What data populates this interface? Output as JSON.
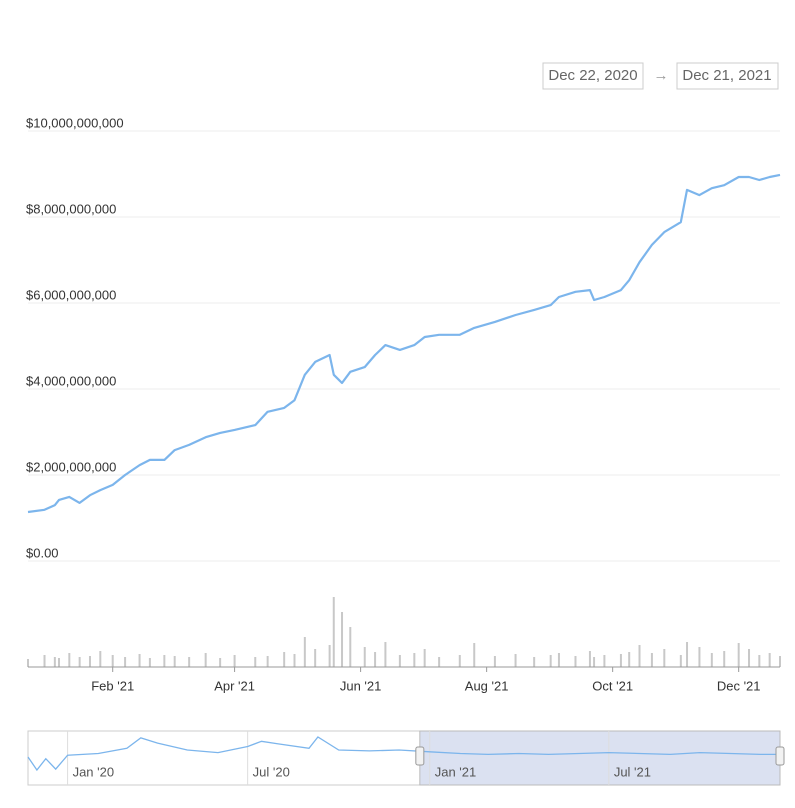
{
  "chart_data": {
    "type": "line",
    "range_start": "Dec 22, 2020",
    "range_end": "Dec 21, 2021",
    "xlim": [
      "2020-12-22",
      "2021-12-21"
    ],
    "x": [
      "2020-12-22",
      "2020-12-30",
      "2021-01-04",
      "2021-01-06",
      "2021-01-11",
      "2021-01-16",
      "2021-01-21",
      "2021-01-26",
      "2021-02-01",
      "2021-02-07",
      "2021-02-14",
      "2021-02-19",
      "2021-02-26",
      "2021-03-03",
      "2021-03-10",
      "2021-03-18",
      "2021-03-25",
      "2021-04-01",
      "2021-04-11",
      "2021-04-17",
      "2021-04-25",
      "2021-04-30",
      "2021-05-05",
      "2021-05-10",
      "2021-05-17",
      "2021-05-19",
      "2021-05-23",
      "2021-05-27",
      "2021-06-03",
      "2021-06-08",
      "2021-06-13",
      "2021-06-20",
      "2021-06-27",
      "2021-07-02",
      "2021-07-09",
      "2021-07-19",
      "2021-07-26",
      "2021-08-05",
      "2021-08-15",
      "2021-08-24",
      "2021-09-01",
      "2021-09-05",
      "2021-09-13",
      "2021-09-20",
      "2021-09-22",
      "2021-09-27",
      "2021-10-05",
      "2021-10-09",
      "2021-10-14",
      "2021-10-20",
      "2021-10-26",
      "2021-11-03",
      "2021-11-06",
      "2021-11-12",
      "2021-11-18",
      "2021-11-24",
      "2021-12-01",
      "2021-12-06",
      "2021-12-11",
      "2021-12-16",
      "2021-12-21"
    ],
    "series": [
      {
        "color": "#7cb5ec",
        "values": [
          1140000000,
          1190000000,
          1300000000,
          1420000000,
          1490000000,
          1350000000,
          1530000000,
          1650000000,
          1770000000,
          2000000000,
          2230000000,
          2350000000,
          2350000000,
          2580000000,
          2700000000,
          2880000000,
          2980000000,
          3050000000,
          3160000000,
          3470000000,
          3560000000,
          3740000000,
          4330000000,
          4630000000,
          4790000000,
          4330000000,
          4140000000,
          4400000000,
          4510000000,
          4790000000,
          5020000000,
          4910000000,
          5020000000,
          5210000000,
          5260000000,
          5260000000,
          5420000000,
          5560000000,
          5720000000,
          5840000000,
          5950000000,
          6140000000,
          6260000000,
          6300000000,
          6070000000,
          6140000000,
          6300000000,
          6530000000,
          6950000000,
          7350000000,
          7650000000,
          7880000000,
          8630000000,
          8510000000,
          8670000000,
          8740000000,
          8930000000,
          8930000000,
          8860000000,
          8930000000,
          8980000000
        ]
      }
    ],
    "volume": [
      8,
      12,
      10,
      9,
      14,
      10,
      11,
      16,
      12,
      10,
      13,
      9,
      12,
      11,
      10,
      14,
      9,
      12,
      10,
      11,
      15,
      13,
      30,
      18,
      22,
      70,
      55,
      40,
      20,
      15,
      25,
      12,
      14,
      18,
      10,
      12,
      24,
      11,
      13,
      10,
      12,
      14,
      11,
      16,
      10,
      12,
      13,
      15,
      22,
      14,
      18,
      12,
      25,
      20,
      14,
      16,
      24,
      18,
      12,
      14,
      11
    ],
    "volume_color": "#c8c8c8",
    "ylim": [
      0,
      10000000000
    ],
    "yticks": [
      {
        "value": 0,
        "label": "$0.00"
      },
      {
        "value": 2000000000,
        "label": "$2,000,000,000"
      },
      {
        "value": 4000000000,
        "label": "$4,000,000,000"
      },
      {
        "value": 6000000000,
        "label": "$6,000,000,000"
      },
      {
        "value": 8000000000,
        "label": "$8,000,000,000"
      },
      {
        "value": 10000000000,
        "label": "$10,000,000,000"
      }
    ],
    "xticks": [
      {
        "value": "2021-02-01",
        "label": "Feb '21"
      },
      {
        "value": "2021-04-01",
        "label": "Apr '21"
      },
      {
        "value": "2021-06-01",
        "label": "Jun '21"
      },
      {
        "value": "2021-08-01",
        "label": "Aug '21"
      },
      {
        "value": "2021-10-01",
        "label": "Oct '21"
      },
      {
        "value": "2021-12-01",
        "label": "Dec '21"
      }
    ],
    "grid": true,
    "navigator": {
      "xlim": [
        "2019-11-22",
        "2021-12-21"
      ],
      "x": [
        "2019-11-22",
        "2019-12-01",
        "2019-12-10",
        "2019-12-20",
        "2020-01-01",
        "2020-02-01",
        "2020-03-01",
        "2020-03-15",
        "2020-04-01",
        "2020-05-01",
        "2020-06-01",
        "2020-07-01",
        "2020-07-15",
        "2020-08-01",
        "2020-09-01",
        "2020-09-10",
        "2020-10-01",
        "2020-11-01",
        "2020-12-01",
        "2021-01-01",
        "2021-02-01",
        "2021-03-01",
        "2021-04-01",
        "2021-05-01",
        "2021-06-01",
        "2021-07-01",
        "2021-08-01",
        "2021-09-01",
        "2021-10-01",
        "2021-11-01",
        "2021-12-01",
        "2021-12-21"
      ],
      "values": [
        30,
        15,
        28,
        16,
        32,
        34,
        40,
        52,
        46,
        38,
        35,
        42,
        48,
        45,
        40,
        53,
        38,
        37,
        38,
        36,
        34,
        33,
        34,
        33,
        34,
        35,
        34,
        33,
        35,
        34,
        33,
        33
      ],
      "xticks": [
        {
          "value": "2020-01-01",
          "label": "Jan '20"
        },
        {
          "value": "2020-07-01",
          "label": "Jul '20"
        },
        {
          "value": "2021-01-01",
          "label": "Jan '21"
        },
        {
          "value": "2021-07-01",
          "label": "Jul '21"
        }
      ]
    }
  }
}
